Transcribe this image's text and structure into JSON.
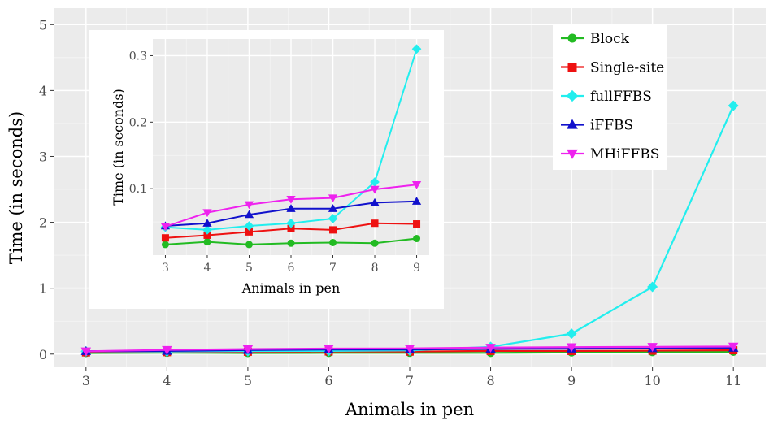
{
  "chart_data": [
    {
      "type": "line",
      "xlabel": "Animals in pen",
      "ylabel": "Time (in seconds)",
      "x": [
        3,
        4,
        5,
        6,
        7,
        8,
        9,
        10,
        11
      ],
      "xlim": [
        2.6,
        11.4
      ],
      "ylim": [
        -0.2,
        5.25
      ],
      "x_ticks": [
        "3",
        "4",
        "5",
        "6",
        "7",
        "8",
        "9",
        "10",
        "11"
      ],
      "y_ticks": [
        "0",
        "1",
        "2",
        "3",
        "4",
        "5"
      ],
      "grid": true,
      "legend_position": "top-right",
      "series": [
        {
          "name": "Block",
          "color": "#22bb22",
          "marker": "circle",
          "values": [
            0.016,
            0.02,
            0.016,
            0.018,
            0.019,
            0.018,
            0.025,
            0.03,
            0.034
          ]
        },
        {
          "name": "Single-site",
          "color": "#ee1111",
          "marker": "square",
          "values": [
            0.026,
            0.03,
            0.035,
            0.04,
            0.038,
            0.048,
            0.047,
            0.052,
            0.058
          ]
        },
        {
          "name": "fullFFBS",
          "color": "#22eeee",
          "marker": "diamond",
          "values": [
            0.042,
            0.038,
            0.044,
            0.048,
            0.055,
            0.11,
            0.31,
            1.02,
            3.77
          ]
        },
        {
          "name": "iFFBS",
          "color": "#1111cc",
          "marker": "triangle-up",
          "values": [
            0.044,
            0.048,
            0.061,
            0.07,
            0.07,
            0.079,
            0.081,
            0.088,
            0.094
          ]
        },
        {
          "name": "MHiFFBS",
          "color": "#ee22ee",
          "marker": "triangle-down",
          "values": [
            0.043,
            0.064,
            0.076,
            0.084,
            0.086,
            0.099,
            0.106,
            0.11,
            0.115
          ]
        }
      ]
    },
    {
      "type": "line",
      "xlabel": "Animals in pen",
      "ylabel": "Time (in seconds)",
      "x": [
        3,
        4,
        5,
        6,
        7,
        8,
        9
      ],
      "xlim": [
        2.7,
        9.3
      ],
      "ylim": [
        0.0,
        0.325
      ],
      "x_ticks": [
        "3",
        "4",
        "5",
        "6",
        "7",
        "8",
        "9"
      ],
      "y_ticks": [
        "0.1",
        "0.2",
        "0.3"
      ],
      "y_tick_values": [
        0.1,
        0.2,
        0.3
      ],
      "grid": true,
      "series": [
        {
          "name": "Block",
          "values": [
            0.016,
            0.02,
            0.016,
            0.018,
            0.019,
            0.018,
            0.025
          ]
        },
        {
          "name": "Single-site",
          "values": [
            0.026,
            0.03,
            0.035,
            0.04,
            0.038,
            0.048,
            0.047
          ]
        },
        {
          "name": "fullFFBS",
          "values": [
            0.042,
            0.038,
            0.044,
            0.048,
            0.055,
            0.11,
            0.31
          ]
        },
        {
          "name": "iFFBS",
          "values": [
            0.044,
            0.048,
            0.061,
            0.07,
            0.07,
            0.079,
            0.081
          ]
        },
        {
          "name": "MHiFFBS",
          "values": [
            0.043,
            0.064,
            0.076,
            0.084,
            0.086,
            0.099,
            0.106
          ]
        }
      ]
    }
  ]
}
